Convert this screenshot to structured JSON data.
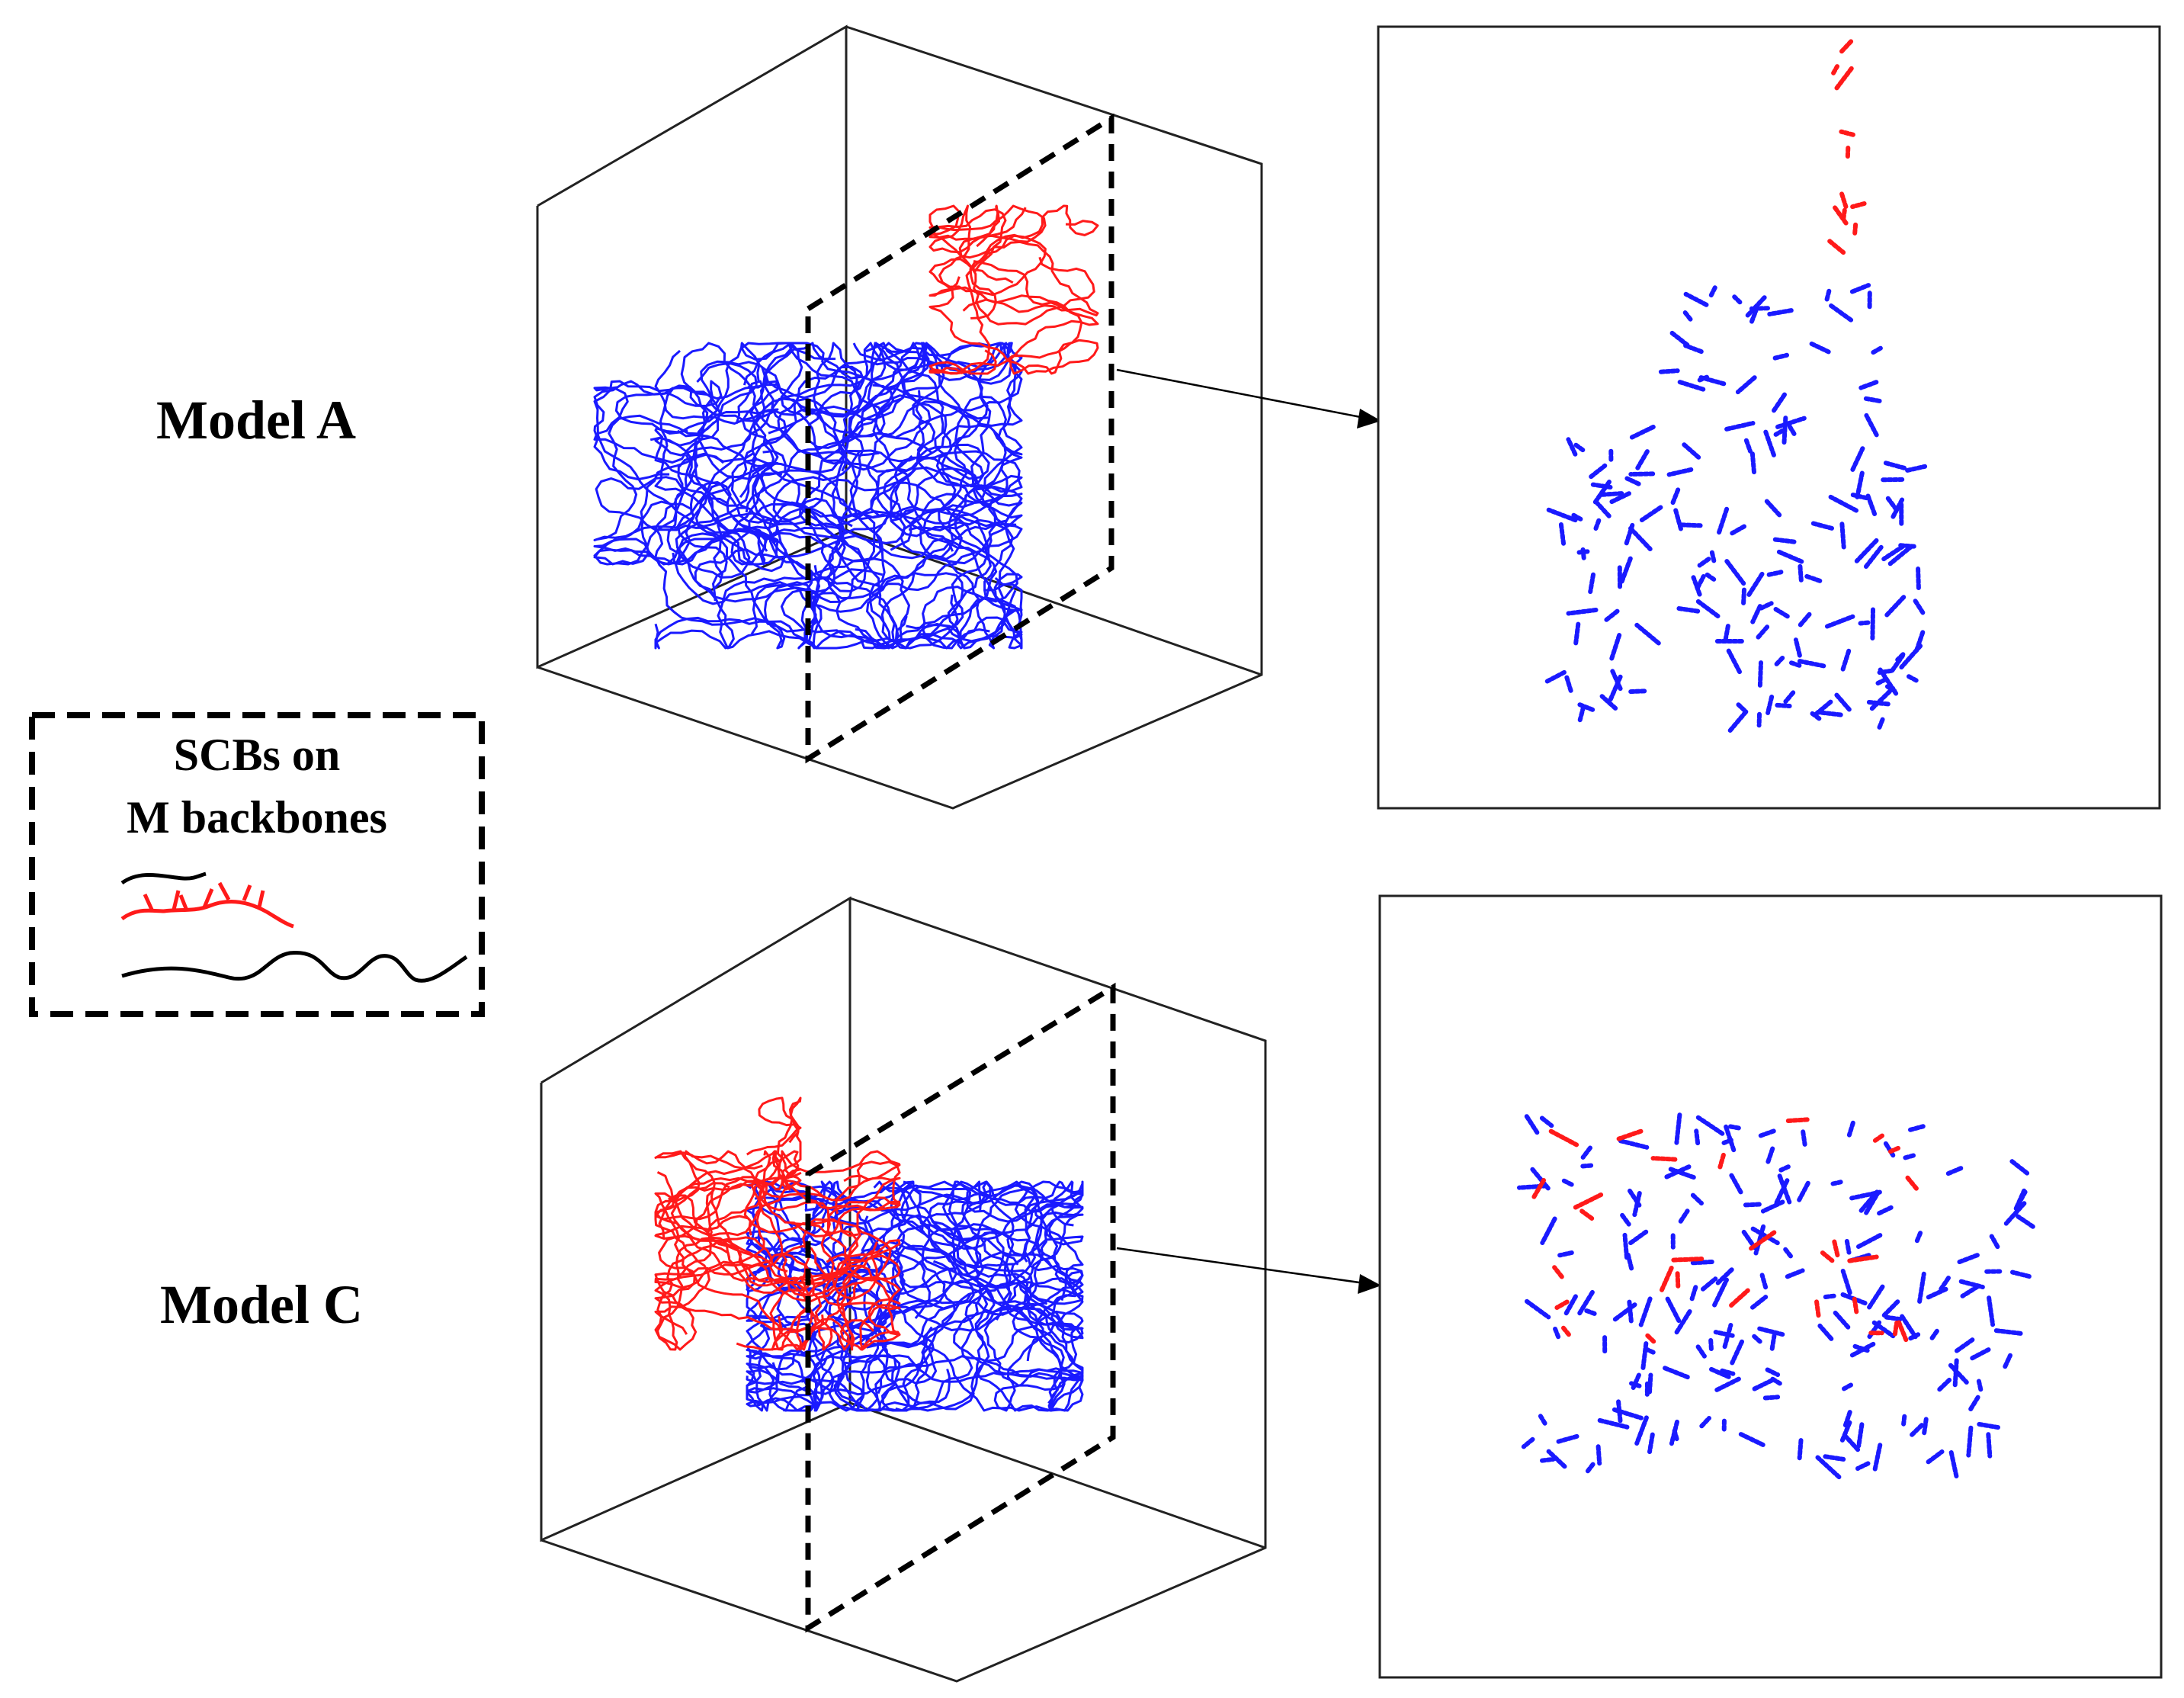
{
  "figure": {
    "models": [
      {
        "label": "Model A",
        "id": "model-a"
      },
      {
        "label": "Model C",
        "id": "model-c"
      }
    ],
    "legend": {
      "title_line1": "SCBs on",
      "title_line2": "M backbones",
      "entries": [
        {
          "style": "short-black-chain"
        },
        {
          "style": "red-branched-chain"
        },
        {
          "style": "long-black-wavy-chain"
        }
      ]
    },
    "colors": {
      "chain_primary": "#1a1aff",
      "chain_secondary": "#ff1a1a",
      "outline": "#000000",
      "background": "#ffffff"
    }
  }
}
